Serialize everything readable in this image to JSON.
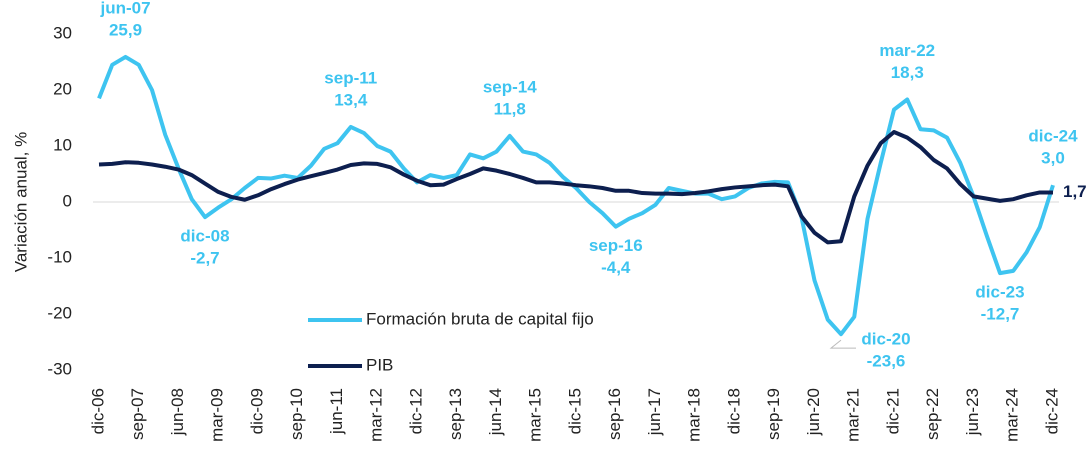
{
  "chart_data": {
    "type": "line",
    "y_label": "Variación anual, %",
    "categories": [
      "dic-06",
      null,
      null,
      "sep-07",
      null,
      null,
      "jun-08",
      null,
      null,
      "mar-09",
      null,
      null,
      "dic-09",
      null,
      null,
      "sep-10",
      null,
      null,
      "jun-11",
      null,
      null,
      "mar-12",
      null,
      null,
      "dic-12",
      null,
      null,
      "sep-13",
      null,
      null,
      "jun-14",
      null,
      null,
      "mar-15",
      null,
      null,
      "dic-15",
      null,
      null,
      "sep-16",
      null,
      null,
      "jun-17",
      null,
      null,
      "mar-18",
      null,
      null,
      "dic-18",
      null,
      null,
      "sep-19",
      null,
      null,
      "jun-20",
      null,
      null,
      "mar-21",
      null,
      null,
      "dic-21",
      null,
      null,
      "sep-22",
      null,
      null,
      "jun-23",
      null,
      null,
      "mar-24",
      null,
      null,
      "dic-24"
    ],
    "series": [
      {
        "name": "Formación bruta de capital fijo",
        "color": "#3ec4f0",
        "values": [
          18.5,
          24.5,
          25.9,
          24.5,
          20,
          12,
          6,
          0.5,
          -2.7,
          -1,
          0.5,
          2.5,
          4.3,
          4.2,
          4.7,
          4.3,
          6.5,
          9.5,
          10.5,
          13.4,
          12.3,
          10,
          9,
          6,
          3.5,
          4.8,
          4.3,
          4.8,
          8.5,
          7.8,
          9,
          11.8,
          9,
          8.5,
          7,
          4.5,
          2.5,
          0,
          -2,
          -4.4,
          -3,
          -2,
          -0.5,
          2.5,
          2,
          1.5,
          1.5,
          0.5,
          1,
          2.5,
          3.3,
          3.6,
          3.5,
          -2.5,
          -14,
          -21,
          -23.6,
          -20.5,
          -3,
          7,
          16.5,
          18.3,
          13,
          12.8,
          11.5,
          7,
          1,
          -6,
          -12.7,
          -12.3,
          -9,
          -4.5,
          3.0
        ],
        "point_labels": [
          null,
          null,
          "jun-07",
          null,
          null,
          null,
          null,
          null,
          "dic-08",
          null,
          null,
          null,
          null,
          null,
          null,
          null,
          null,
          null,
          null,
          "sep-11",
          null,
          null,
          null,
          null,
          null,
          null,
          null,
          null,
          null,
          null,
          null,
          "sep-14",
          null,
          null,
          null,
          null,
          null,
          null,
          null,
          "sep-16",
          null,
          null,
          null,
          null,
          null,
          null,
          null,
          null,
          null,
          null,
          null,
          null,
          null,
          null,
          null,
          null,
          "dic-20",
          null,
          null,
          null,
          null,
          "mar-22",
          null,
          null,
          null,
          null,
          null,
          null,
          "dic-23",
          null,
          null,
          null,
          "dic-24"
        ],
        "value_labels": [
          null,
          null,
          "25,9",
          null,
          null,
          null,
          null,
          null,
          "-2,7",
          null,
          null,
          null,
          null,
          null,
          null,
          null,
          null,
          null,
          null,
          "13,4",
          null,
          null,
          null,
          null,
          null,
          null,
          null,
          null,
          null,
          null,
          null,
          "11,8",
          null,
          null,
          null,
          null,
          null,
          null,
          null,
          "-4,4",
          null,
          null,
          null,
          null,
          null,
          null,
          null,
          null,
          null,
          null,
          null,
          null,
          null,
          null,
          null,
          null,
          "-23,6",
          null,
          null,
          null,
          null,
          "18,3",
          null,
          null,
          null,
          null,
          null,
          null,
          "-12,7",
          null,
          null,
          null,
          "3,0"
        ]
      },
      {
        "name": "PIB",
        "color": "#0d1f4f",
        "values": [
          6.7,
          6.8,
          7.1,
          7,
          6.7,
          6.3,
          5.8,
          4.8,
          3.3,
          1.8,
          0.9,
          0.4,
          1.2,
          2.3,
          3.2,
          4,
          4.6,
          5.2,
          5.8,
          6.6,
          6.9,
          6.8,
          6.2,
          4.9,
          3.8,
          3,
          3.1,
          4.1,
          5,
          6,
          5.6,
          5,
          4.3,
          3.5,
          3.5,
          3.3,
          3,
          2.8,
          2.5,
          2,
          2,
          1.6,
          1.5,
          1.5,
          1.4,
          1.6,
          1.9,
          2.3,
          2.6,
          2.8,
          3,
          3.1,
          2.8,
          -2.5,
          -5.5,
          -7.2,
          -7,
          1,
          6.5,
          10.5,
          12.5,
          11.5,
          9.8,
          7.5,
          6,
          3.2,
          1,
          0.6,
          0.2,
          0.5,
          1.2,
          1.7,
          1.7
        ],
        "value_labels": [
          null,
          null,
          null,
          null,
          null,
          null,
          null,
          null,
          null,
          null,
          null,
          null,
          null,
          null,
          null,
          null,
          null,
          null,
          null,
          null,
          null,
          null,
          null,
          null,
          null,
          null,
          null,
          null,
          null,
          null,
          null,
          null,
          null,
          null,
          null,
          null,
          null,
          null,
          null,
          null,
          null,
          null,
          null,
          null,
          null,
          null,
          null,
          null,
          null,
          null,
          null,
          null,
          null,
          null,
          null,
          null,
          null,
          null,
          null,
          null,
          null,
          null,
          null,
          null,
          null,
          null,
          null,
          null,
          null,
          null,
          null,
          null,
          "1,7"
        ]
      }
    ],
    "ylim": [
      -30,
      30
    ],
    "yticks": [
      -30,
      -20,
      -10,
      0,
      10,
      20,
      30
    ]
  }
}
